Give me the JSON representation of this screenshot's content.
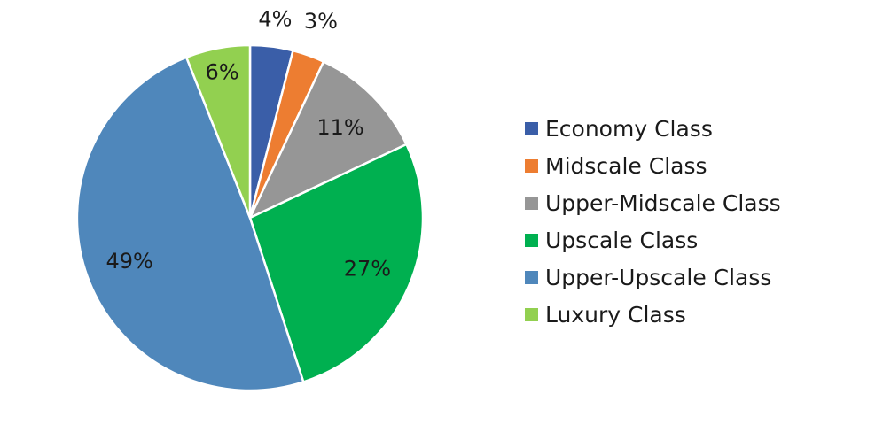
{
  "chart_data": {
    "type": "pie",
    "categories": [
      "Economy Class",
      "Midscale Class",
      "Upper-Midscale Class",
      "Upscale Class",
      "Upper-Upscale Class",
      "Luxury Class"
    ],
    "values": [
      4,
      3,
      11,
      27,
      49,
      6
    ],
    "data_labels": [
      "4%",
      "3%",
      "11%",
      "27%",
      "49%",
      "6%"
    ],
    "colors": [
      "#3a5ea8",
      "#ed7d31",
      "#969696",
      "#00b050",
      "#4f87bb",
      "#92d050"
    ],
    "start_angle_deg": 0,
    "direction": "clockwise",
    "legend_position": "right"
  }
}
